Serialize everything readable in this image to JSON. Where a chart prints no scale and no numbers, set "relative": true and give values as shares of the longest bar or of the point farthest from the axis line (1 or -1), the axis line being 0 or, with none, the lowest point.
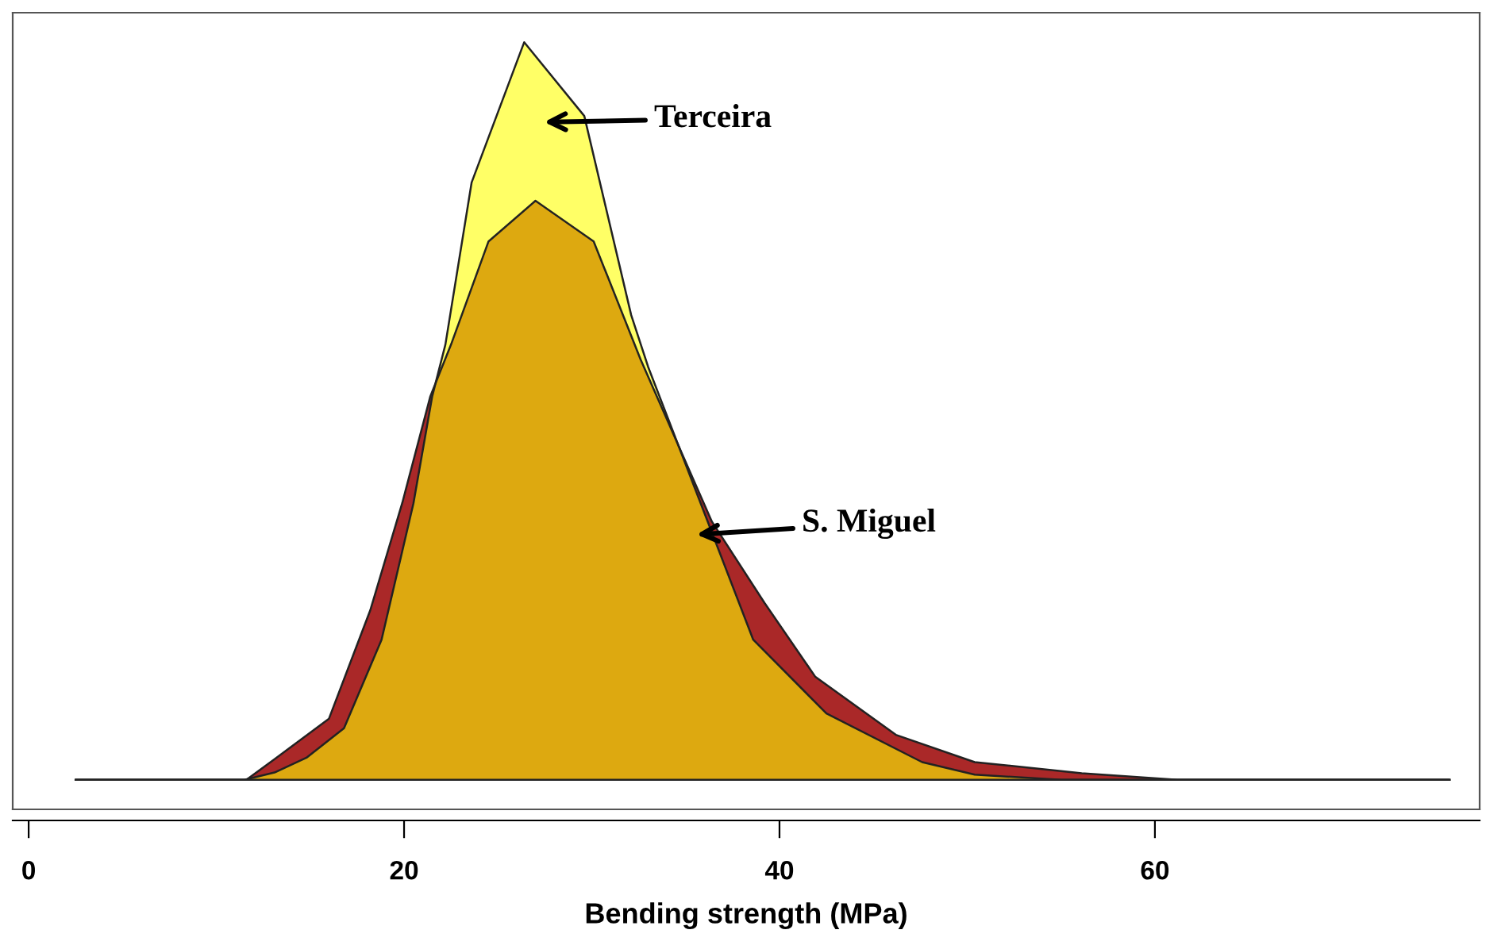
{
  "chart_data": {
    "type": "area",
    "relative": true,
    "xlabel": "Bending strength (MPa)",
    "xlim": [
      -0.85,
      77.3
    ],
    "xticks": [
      0,
      20,
      40,
      60
    ],
    "legend": false,
    "series": [
      {
        "color": "#aa2828",
        "x": [
          2.5,
          11.6,
          13.1,
          16.0,
          18.2,
          19.9,
          21.4,
          22.5,
          24.5,
          27.0,
          30.1,
          32.6,
          36.4,
          39.2,
          41.9,
          46.2,
          50.4,
          56.1,
          61.2,
          75.7
        ],
        "values": [
          0,
          0,
          0.028,
          0.083,
          0.23,
          0.375,
          0.52,
          0.59,
          0.73,
          0.785,
          0.73,
          0.57,
          0.35,
          0.24,
          0.14,
          0.061,
          0.024,
          0.009,
          0,
          0
        ]
      },
      {
        "color": "#ffff00",
        "x": [
          2.5,
          11.5,
          13.1,
          14.8,
          16.8,
          18.8,
          20.5,
          21.5,
          22.2,
          23.6,
          26.4,
          29.6,
          32.1,
          33.0,
          35.8,
          38.6,
          42.5,
          47.6,
          50.4,
          55.0,
          75.7
        ],
        "values": [
          0,
          0,
          0.01,
          0.03,
          0.07,
          0.19,
          0.375,
          0.52,
          0.59,
          0.81,
          1.0,
          0.9,
          0.63,
          0.56,
          0.375,
          0.19,
          0.09,
          0.024,
          0.007,
          0,
          0
        ]
      }
    ],
    "annotations": [
      "Terceira",
      "S. Miguel"
    ]
  }
}
